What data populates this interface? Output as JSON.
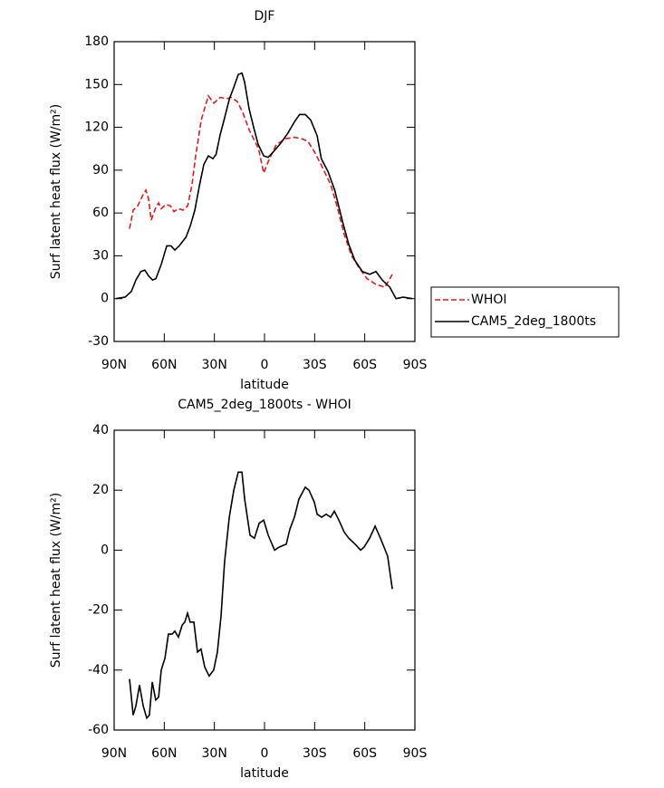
{
  "chart_data": [
    {
      "type": "line",
      "title": "DJF",
      "xlabel": "latitude",
      "ylabel": "Surf latent heat flux (W/m²)",
      "xlim": [
        90,
        -90
      ],
      "xticks": [
        {
          "value": 90,
          "label": "90N"
        },
        {
          "value": 60,
          "label": "60N"
        },
        {
          "value": 30,
          "label": "30N"
        },
        0,
        {
          "value": -30,
          "label": "30S"
        },
        {
          "value": -60,
          "label": "60S"
        },
        {
          "value": -90,
          "label": "90S"
        }
      ],
      "ylim": [
        -30,
        180
      ],
      "yticks": [
        -30,
        0,
        30,
        60,
        90,
        120,
        150,
        180
      ],
      "legend": "right",
      "series": [
        {
          "name": "WHOI",
          "color": "#e41a1c",
          "linestyle": "dashed",
          "x": [
            80.8,
            78.6,
            75.9,
            72.6,
            71,
            69.4,
            67.8,
            65,
            63.4,
            61.8,
            59,
            56.3,
            54.2,
            51.5,
            48.8,
            46,
            43.4,
            41.2,
            37.9,
            33.6,
            30.3,
            26.5,
            22.7,
            20,
            16.2,
            12.9,
            9.1,
            3.6,
            0.5,
            -2.2,
            -7.1,
            -12.5,
            -18,
            -22.3,
            -26.1,
            -29.8,
            -34.2,
            -39.6,
            -43.4,
            -47.7,
            -52.1,
            -56.4,
            -61.3,
            -66.7,
            -72.1,
            -76.5
          ],
          "values": [
            49,
            62,
            65,
            73,
            76,
            70,
            55,
            64,
            67,
            63,
            66,
            65,
            61,
            63,
            62,
            65,
            80,
            100,
            125,
            142,
            137,
            141,
            140,
            141,
            138,
            130,
            118,
            105,
            88,
            96,
            108,
            112,
            113,
            112,
            110,
            103,
            93,
            80,
            65,
            45,
            30,
            22,
            14,
            10,
            8,
            17
          ]
        },
        {
          "name": "CAM5_2deg_1800ts",
          "color": "#000000",
          "linestyle": "solid",
          "x": [
            89,
            83.5,
            79.7,
            77,
            74,
            71.6,
            69.4,
            67,
            65,
            61.8,
            58.5,
            56,
            53.7,
            51,
            47,
            44.4,
            41.7,
            39,
            36.3,
            33.6,
            30.9,
            29,
            26.5,
            23.8,
            21,
            18.4,
            15.7,
            13.5,
            12,
            9.2,
            6.5,
            3.8,
            0.5,
            -2.2,
            -5.4,
            -9.8,
            -14,
            -18,
            -21,
            -24.4,
            -27.7,
            -31.5,
            -34,
            -38,
            -42,
            -46.7,
            -50.4,
            -54,
            -58.6,
            -63,
            -66.7,
            -70.5,
            -75,
            -78.7,
            -83,
            -88.5
          ],
          "values": [
            0,
            1,
            5,
            13,
            19,
            20,
            16,
            13,
            14,
            24,
            37,
            37,
            34,
            37,
            43,
            51,
            62,
            79,
            94,
            100,
            98,
            101,
            115,
            127,
            140,
            148,
            157,
            158,
            152,
            133,
            120,
            108,
            100,
            99,
            103,
            109,
            116,
            124,
            129,
            129,
            125,
            114,
            98,
            89,
            76,
            54,
            38,
            27,
            19,
            17,
            19,
            13,
            8,
            0,
            1,
            0
          ]
        }
      ]
    },
    {
      "type": "line",
      "title": "CAM5_2deg_1800ts - WHOI",
      "xlabel": "latitude",
      "ylabel": "Surf latent heat flux (W/m²)",
      "xlim": [
        90,
        -90
      ],
      "xticks": [
        {
          "value": 90,
          "label": "90N"
        },
        {
          "value": 60,
          "label": "60N"
        },
        {
          "value": 30,
          "label": "30N"
        },
        0,
        {
          "value": -30,
          "label": "30S"
        },
        {
          "value": -60,
          "label": "60S"
        },
        {
          "value": -90,
          "label": "90S"
        }
      ],
      "ylim": [
        -60,
        40
      ],
      "yticks": [
        -60,
        -40,
        -20,
        0,
        20,
        40
      ],
      "series": [
        {
          "color": "#000000",
          "linestyle": "solid",
          "x": [
            80.8,
            78.6,
            77,
            74.8,
            72.6,
            70.5,
            68.9,
            67.2,
            65.1,
            63.4,
            61.8,
            59.6,
            57.5,
            55.3,
            53.7,
            51.5,
            49.3,
            47.7,
            46.1,
            44.5,
            42.3,
            40.1,
            38,
            35.8,
            33.1,
            30.4,
            28.2,
            26,
            23.9,
            21.1,
            18.4,
            15.7,
            13.5,
            11.9,
            8.7,
            6,
            3.2,
            0.5,
            -2.2,
            -6,
            -8.7,
            -13,
            -15.2,
            -17.9,
            -20.6,
            -24.4,
            -26.6,
            -29.8,
            -31.5,
            -34.2,
            -36.9,
            -39.6,
            -41.8,
            -44.5,
            -47.7,
            -50.4,
            -54.2,
            -57.5,
            -59.6,
            -62.9,
            -66.2,
            -69.4,
            -73.7,
            -76.5
          ],
          "values": [
            -43,
            -55,
            -52,
            -45,
            -52,
            -56,
            -55,
            -44,
            -50,
            -49,
            -40,
            -36,
            -28,
            -28,
            -27,
            -29,
            -25,
            -24,
            -21,
            -24,
            -24,
            -34,
            -33,
            -39,
            -42,
            -40,
            -34,
            -22,
            -4,
            11,
            20,
            26,
            26,
            17,
            5,
            4,
            9,
            10,
            5,
            0,
            1,
            2,
            7,
            11,
            17,
            21,
            20,
            16,
            12,
            11,
            12,
            11,
            13,
            10,
            6,
            4,
            2,
            0,
            1,
            4,
            8,
            4,
            -2,
            -13
          ]
        }
      ]
    }
  ]
}
